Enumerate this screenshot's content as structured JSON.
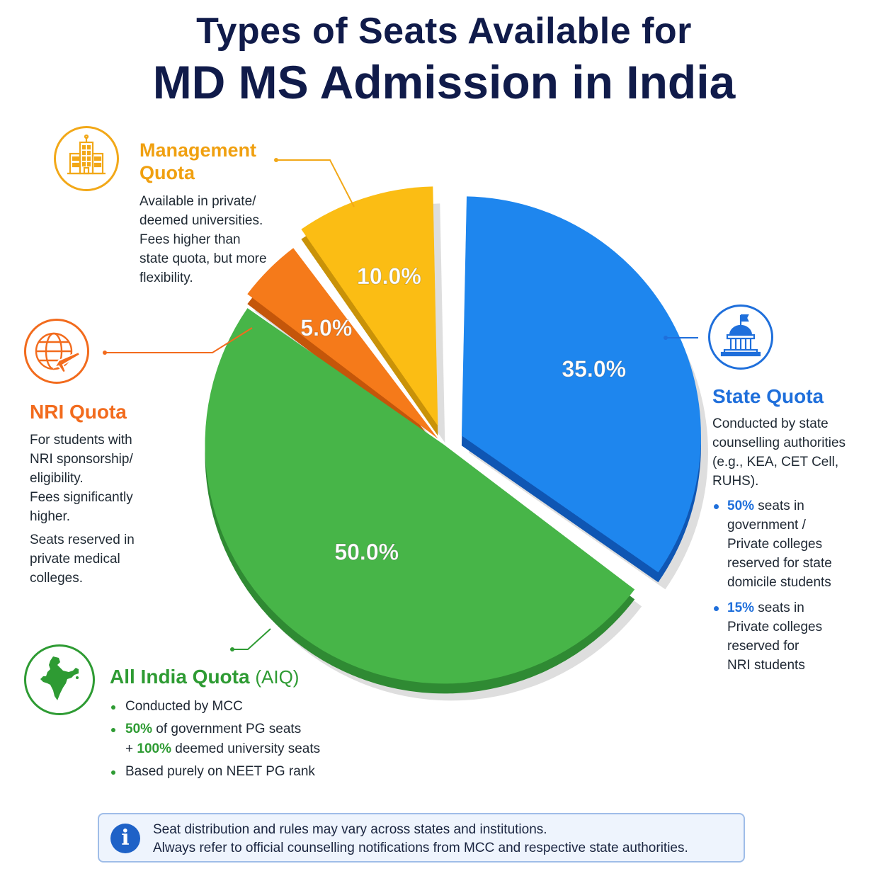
{
  "title": {
    "line1": "Types of Seats Available for",
    "line2": "MD MS Admission in India"
  },
  "colors": {
    "aiq": "#47b548",
    "state": "#1e86ee",
    "nri": "#f57a1a",
    "management": "#fbbd14",
    "title": "#101b4a"
  },
  "chart_data": {
    "type": "pie",
    "slices": [
      {
        "name": "All India Quota (AIQ)",
        "value": 50.0,
        "label": "50.0%"
      },
      {
        "name": "State Quota",
        "value": 35.0,
        "label": "35.0%"
      },
      {
        "name": "NRI Quota",
        "value": 5.0,
        "label": "5.0%"
      },
      {
        "name": "Management Quota",
        "value": 10.0,
        "label": "10.0%"
      }
    ]
  },
  "management": {
    "icon": "building-icon",
    "heading_line1": "Management",
    "heading_line2": "Quota",
    "lines": [
      "Available in private/",
      "deemed universities.",
      "Fees higher than",
      "state quota, but more",
      "flexibility."
    ]
  },
  "nri": {
    "icon": "globe-plane-icon",
    "heading": "NRI Quota",
    "para1": [
      "For students with",
      "NRI sponsorship/",
      "eligibility."
    ],
    "para2": [
      "Fees significantly",
      "higher."
    ],
    "para3": [
      "Seats reserved in",
      "private medical",
      "colleges."
    ]
  },
  "state": {
    "icon": "government-building-icon",
    "heading": "State Quota",
    "lines": [
      "Conducted by state",
      "counselling authorities",
      "(e.g., KEA, CET Cell,",
      "RUHS)."
    ],
    "bullet1_highlight": "50%",
    "bullet1_rest": " seats in",
    "bullet1_lines": [
      "government /",
      "Private colleges",
      "reserved for state",
      "domicile students"
    ],
    "bullet2_highlight": "15%",
    "bullet2_rest": " seats in",
    "bullet2_lines": [
      "Private colleges",
      "reserved for",
      "NRI students"
    ]
  },
  "aiq": {
    "icon": "india-map-icon",
    "heading": "All India Quota",
    "heading_sub": "(AIQ)",
    "bullet1": "Conducted by MCC",
    "bullet2_highlight": "50%",
    "bullet2_rest": " of government PG seats",
    "bullet2_prefix2": "+ ",
    "bullet2_highlight2": "100%",
    "bullet2_rest2": " deemed university seats",
    "bullet3": "Based purely on NEET PG rank"
  },
  "notice": {
    "icon": "info-icon",
    "glyph": "i",
    "line1": "Seat distribution and rules may vary across states and institutions.",
    "line2": "Always refer to official counselling notifications from MCC and respective state authorities."
  }
}
